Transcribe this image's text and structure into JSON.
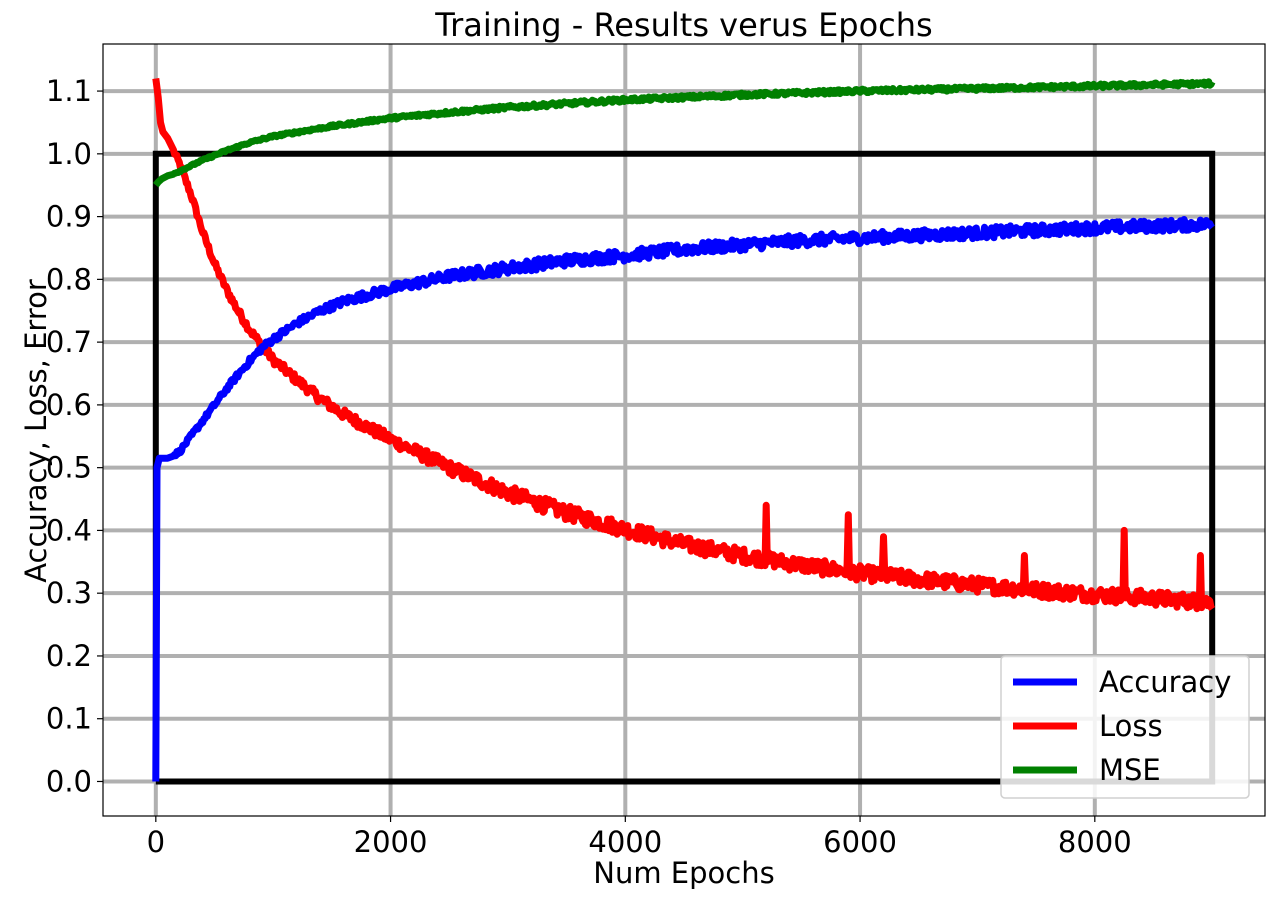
{
  "chart_data": {
    "type": "line",
    "title": "Training - Results verus Epochs",
    "xlabel": "Num Epochs",
    "ylabel": "Accuracy, Loss, Error",
    "xlim": [
      -450,
      9450
    ],
    "ylim": [
      -0.055,
      1.175
    ],
    "xticks": [
      0,
      2000,
      4000,
      6000,
      8000
    ],
    "xtick_labels": [
      "0",
      "2000",
      "4000",
      "6000",
      "8000"
    ],
    "yticks": [
      0.0,
      0.1,
      0.2,
      0.3,
      0.4,
      0.5,
      0.6,
      0.7,
      0.8,
      0.9,
      1.0,
      1.1
    ],
    "ytick_labels": [
      "0.0",
      "0.1",
      "0.2",
      "0.3",
      "0.4",
      "0.5",
      "0.6",
      "0.7",
      "0.8",
      "0.9",
      "1.0",
      "1.1"
    ],
    "grid": true,
    "grid_color": "#b0b0b0",
    "legend_position": "lower-right",
    "reference_lines": [
      {
        "color": "#000000",
        "x": [
          0,
          0,
          9000,
          9000,
          0
        ],
        "y": [
          0.0,
          1.0,
          1.0,
          0.0,
          0.0
        ]
      }
    ],
    "series": [
      {
        "name": "Accuracy",
        "color": "#0000ff",
        "x": [
          0,
          10,
          30,
          60,
          100,
          200,
          300,
          400,
          500,
          600,
          700,
          800,
          900,
          1000,
          1200,
          1400,
          1600,
          1800,
          2000,
          2500,
          3000,
          3500,
          4000,
          4500,
          5000,
          5500,
          6000,
          6500,
          7000,
          7500,
          8000,
          8500,
          9000
        ],
        "y": [
          0.0,
          0.5,
          0.515,
          0.515,
          0.515,
          0.525,
          0.55,
          0.575,
          0.6,
          0.625,
          0.648,
          0.67,
          0.69,
          0.705,
          0.73,
          0.75,
          0.765,
          0.775,
          0.785,
          0.805,
          0.818,
          0.83,
          0.838,
          0.848,
          0.855,
          0.862,
          0.866,
          0.87,
          0.874,
          0.878,
          0.882,
          0.885,
          0.888
        ],
        "noise": 0.009
      },
      {
        "name": "Loss",
        "color": "#ff0000",
        "x": [
          0,
          20,
          40,
          60,
          100,
          200,
          300,
          400,
          500,
          600,
          700,
          800,
          900,
          1000,
          1200,
          1400,
          1600,
          1800,
          2000,
          2500,
          3000,
          3500,
          4000,
          4500,
          5000,
          5500,
          6000,
          6500,
          7000,
          7500,
          8000,
          8500,
          9000
        ],
        "y": [
          1.12,
          1.09,
          1.05,
          1.035,
          1.025,
          0.985,
          0.935,
          0.875,
          0.825,
          0.785,
          0.75,
          0.72,
          0.695,
          0.672,
          0.64,
          0.61,
          0.585,
          0.565,
          0.545,
          0.5,
          0.46,
          0.428,
          0.402,
          0.378,
          0.36,
          0.345,
          0.332,
          0.322,
          0.313,
          0.305,
          0.298,
          0.292,
          0.285
        ],
        "noise": 0.012,
        "spikes": [
          [
            5200,
            0.44
          ],
          [
            5900,
            0.425
          ],
          [
            6200,
            0.39
          ],
          [
            7400,
            0.36
          ],
          [
            8250,
            0.4
          ],
          [
            8900,
            0.36
          ]
        ]
      },
      {
        "name": "MSE",
        "color": "#008000",
        "x": [
          0,
          20,
          50,
          100,
          200,
          400,
          600,
          800,
          1000,
          1500,
          2000,
          2500,
          3000,
          3500,
          4000,
          5000,
          6000,
          7000,
          8000,
          9000
        ],
        "y": [
          0.95,
          0.955,
          0.96,
          0.965,
          0.972,
          0.99,
          1.005,
          1.018,
          1.028,
          1.044,
          1.057,
          1.066,
          1.074,
          1.08,
          1.086,
          1.094,
          1.1,
          1.104,
          1.108,
          1.112
        ],
        "noise": 0.003
      }
    ]
  }
}
